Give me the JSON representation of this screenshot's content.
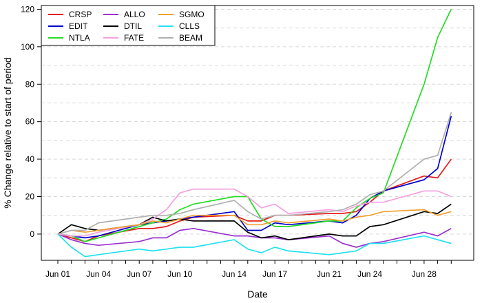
{
  "chart_data": {
    "type": "line",
    "xlabel": "Date",
    "ylabel": "% Change relative to start of period",
    "ylim": [
      -14,
      122
    ],
    "yticks": [
      0,
      20,
      40,
      60,
      80,
      100,
      120
    ],
    "x": [
      "Jun 01",
      "Jun 02",
      "Jun 03",
      "Jun 04",
      "Jun 05",
      "Jun 06",
      "Jun 07",
      "Jun 08",
      "Jun 09",
      "Jun 10",
      "Jun 11",
      "Jun 12",
      "Jun 13",
      "Jun 14",
      "Jun 15",
      "Jun 16",
      "Jun 17",
      "Jun 18",
      "Jun 19",
      "Jun 20",
      "Jun 21",
      "Jun 22",
      "Jun 23",
      "Jun 24",
      "Jun 25",
      "Jun 26",
      "Jun 27",
      "Jun 28",
      "Jun 29",
      "Jun 30"
    ],
    "xticks": [
      "Jun 01",
      "Jun 04",
      "Jun 07",
      "Jun 10",
      "Jun 14",
      "Jun 17",
      "Jun 21",
      "Jun 24",
      "Jun 28"
    ],
    "grid": "horizontal dashed",
    "legend_position": "top-left",
    "series": [
      {
        "name": "CRSP",
        "color": "#e41a1c",
        "points": [
          [
            "Jun 01",
            0
          ],
          [
            "Jun 02",
            -2
          ],
          [
            "Jun 03",
            -4
          ],
          [
            "Jun 04",
            -1
          ],
          [
            "Jun 07",
            3
          ],
          [
            "Jun 08",
            3
          ],
          [
            "Jun 09",
            4
          ],
          [
            "Jun 10",
            7
          ],
          [
            "Jun 11",
            9
          ],
          [
            "Jun 14",
            10
          ],
          [
            "Jun 15",
            7
          ],
          [
            "Jun 16",
            7
          ],
          [
            "Jun 17",
            10
          ],
          [
            "Jun 18",
            10
          ],
          [
            "Jun 21",
            11
          ],
          [
            "Jun 22",
            11
          ],
          [
            "Jun 23",
            12
          ],
          [
            "Jun 24",
            17
          ],
          [
            "Jun 25",
            23
          ],
          [
            "Jun 28",
            31
          ],
          [
            "Jun 29",
            30
          ],
          [
            "Jun 30",
            40
          ]
        ]
      },
      {
        "name": "EDIT",
        "color": "#0000cc",
        "points": [
          [
            "Jun 01",
            0
          ],
          [
            "Jun 02",
            -1
          ],
          [
            "Jun 03",
            -2
          ],
          [
            "Jun 04",
            -1
          ],
          [
            "Jun 07",
            5
          ],
          [
            "Jun 08",
            6
          ],
          [
            "Jun 09",
            7
          ],
          [
            "Jun 10",
            8
          ],
          [
            "Jun 11",
            9
          ],
          [
            "Jun 14",
            12
          ],
          [
            "Jun 15",
            2
          ],
          [
            "Jun 16",
            2
          ],
          [
            "Jun 17",
            6
          ],
          [
            "Jun 18",
            5
          ],
          [
            "Jun 21",
            7
          ],
          [
            "Jun 22",
            6
          ],
          [
            "Jun 23",
            10
          ],
          [
            "Jun 24",
            19
          ],
          [
            "Jun 25",
            23
          ],
          [
            "Jun 28",
            29
          ],
          [
            "Jun 29",
            35
          ],
          [
            "Jun 30",
            63
          ]
        ]
      },
      {
        "name": "NTLA",
        "color": "#22dd22",
        "points": [
          [
            "Jun 01",
            0
          ],
          [
            "Jun 02",
            -1
          ],
          [
            "Jun 03",
            -4
          ],
          [
            "Jun 04",
            -2
          ],
          [
            "Jun 07",
            4
          ],
          [
            "Jun 08",
            6
          ],
          [
            "Jun 09",
            8
          ],
          [
            "Jun 10",
            13
          ],
          [
            "Jun 11",
            16
          ],
          [
            "Jun 14",
            20
          ],
          [
            "Jun 15",
            20
          ],
          [
            "Jun 16",
            8
          ],
          [
            "Jun 17",
            4
          ],
          [
            "Jun 18",
            4
          ],
          [
            "Jun 21",
            7
          ],
          [
            "Jun 22",
            7
          ],
          [
            "Jun 23",
            14
          ],
          [
            "Jun 24",
            19
          ],
          [
            "Jun 25",
            22
          ],
          [
            "Jun 28",
            80
          ],
          [
            "Jun 29",
            105
          ],
          [
            "Jun 30",
            120
          ]
        ]
      },
      {
        "name": "ALLO",
        "color": "#9b30d0",
        "points": [
          [
            "Jun 01",
            0
          ],
          [
            "Jun 02",
            -3
          ],
          [
            "Jun 03",
            -5
          ],
          [
            "Jun 04",
            -6
          ],
          [
            "Jun 07",
            -4
          ],
          [
            "Jun 08",
            -2
          ],
          [
            "Jun 09",
            -2
          ],
          [
            "Jun 10",
            2
          ],
          [
            "Jun 11",
            3
          ],
          [
            "Jun 14",
            -1
          ],
          [
            "Jun 15",
            -1
          ],
          [
            "Jun 16",
            -2
          ],
          [
            "Jun 17",
            -2
          ],
          [
            "Jun 18",
            -3
          ],
          [
            "Jun 21",
            -1
          ],
          [
            "Jun 22",
            -5
          ],
          [
            "Jun 23",
            -7
          ],
          [
            "Jun 24",
            -5
          ],
          [
            "Jun 25",
            -4
          ],
          [
            "Jun 28",
            1
          ],
          [
            "Jun 29",
            -1
          ],
          [
            "Jun 30",
            3
          ]
        ]
      },
      {
        "name": "DTIL",
        "color": "#000000",
        "points": [
          [
            "Jun 01",
            0
          ],
          [
            "Jun 02",
            5
          ],
          [
            "Jun 03",
            3
          ],
          [
            "Jun 04",
            2
          ],
          [
            "Jun 07",
            5
          ],
          [
            "Jun 08",
            9
          ],
          [
            "Jun 09",
            7
          ],
          [
            "Jun 10",
            8
          ],
          [
            "Jun 11",
            7
          ],
          [
            "Jun 14",
            7
          ],
          [
            "Jun 15",
            1
          ],
          [
            "Jun 16",
            -2
          ],
          [
            "Jun 17",
            -1
          ],
          [
            "Jun 18",
            -3
          ],
          [
            "Jun 21",
            0
          ],
          [
            "Jun 22",
            -1
          ],
          [
            "Jun 23",
            -1
          ],
          [
            "Jun 24",
            4
          ],
          [
            "Jun 25",
            5
          ],
          [
            "Jun 28",
            12
          ],
          [
            "Jun 29",
            11
          ],
          [
            "Jun 30",
            16
          ]
        ]
      },
      {
        "name": "FATE",
        "color": "#f5a0e0",
        "points": [
          [
            "Jun 01",
            0
          ],
          [
            "Jun 02",
            -1
          ],
          [
            "Jun 03",
            -1
          ],
          [
            "Jun 04",
            1
          ],
          [
            "Jun 07",
            5
          ],
          [
            "Jun 08",
            8
          ],
          [
            "Jun 09",
            13
          ],
          [
            "Jun 10",
            22
          ],
          [
            "Jun 11",
            24
          ],
          [
            "Jun 14",
            24
          ],
          [
            "Jun 15",
            20
          ],
          [
            "Jun 16",
            14
          ],
          [
            "Jun 17",
            16
          ],
          [
            "Jun 18",
            11
          ],
          [
            "Jun 21",
            13
          ],
          [
            "Jun 22",
            12
          ],
          [
            "Jun 23",
            15
          ],
          [
            "Jun 24",
            17
          ],
          [
            "Jun 25",
            17
          ],
          [
            "Jun 28",
            23
          ],
          [
            "Jun 29",
            23
          ],
          [
            "Jun 30",
            20
          ]
        ]
      },
      {
        "name": "SGMO",
        "color": "#f0a030",
        "points": [
          [
            "Jun 01",
            0
          ],
          [
            "Jun 02",
            2
          ],
          [
            "Jun 03",
            1
          ],
          [
            "Jun 04",
            2
          ],
          [
            "Jun 07",
            5
          ],
          [
            "Jun 08",
            7
          ],
          [
            "Jun 09",
            6
          ],
          [
            "Jun 10",
            8
          ],
          [
            "Jun 11",
            10
          ],
          [
            "Jun 14",
            10
          ],
          [
            "Jun 15",
            5
          ],
          [
            "Jun 16",
            5
          ],
          [
            "Jun 17",
            7
          ],
          [
            "Jun 18",
            6
          ],
          [
            "Jun 21",
            8
          ],
          [
            "Jun 22",
            7
          ],
          [
            "Jun 23",
            9
          ],
          [
            "Jun 24",
            10
          ],
          [
            "Jun 25",
            12
          ],
          [
            "Jun 28",
            13
          ],
          [
            "Jun 29",
            10
          ],
          [
            "Jun 30",
            12
          ]
        ]
      },
      {
        "name": "CLLS",
        "color": "#22e0f0",
        "points": [
          [
            "Jun 01",
            0
          ],
          [
            "Jun 02",
            -7
          ],
          [
            "Jun 03",
            -12
          ],
          [
            "Jun 04",
            -11
          ],
          [
            "Jun 07",
            -8
          ],
          [
            "Jun 08",
            -9
          ],
          [
            "Jun 09",
            -8
          ],
          [
            "Jun 10",
            -7
          ],
          [
            "Jun 11",
            -7
          ],
          [
            "Jun 14",
            -3
          ],
          [
            "Jun 15",
            -8
          ],
          [
            "Jun 16",
            -10
          ],
          [
            "Jun 17",
            -7
          ],
          [
            "Jun 18",
            -9
          ],
          [
            "Jun 21",
            -11
          ],
          [
            "Jun 22",
            -10
          ],
          [
            "Jun 23",
            -9
          ],
          [
            "Jun 24",
            -5
          ],
          [
            "Jun 25",
            -5
          ],
          [
            "Jun 28",
            -1
          ],
          [
            "Jun 29",
            -3
          ],
          [
            "Jun 30",
            -5
          ]
        ]
      },
      {
        "name": "BEAM",
        "color": "#b0b0b0",
        "points": [
          [
            "Jun 01",
            0
          ],
          [
            "Jun 02",
            2
          ],
          [
            "Jun 03",
            2
          ],
          [
            "Jun 04",
            6
          ],
          [
            "Jun 07",
            9
          ],
          [
            "Jun 08",
            10
          ],
          [
            "Jun 09",
            10
          ],
          [
            "Jun 10",
            11
          ],
          [
            "Jun 11",
            13
          ],
          [
            "Jun 14",
            18
          ],
          [
            "Jun 15",
            12
          ],
          [
            "Jun 16",
            8
          ],
          [
            "Jun 17",
            10
          ],
          [
            "Jun 18",
            10
          ],
          [
            "Jun 21",
            12
          ],
          [
            "Jun 22",
            13
          ],
          [
            "Jun 23",
            16
          ],
          [
            "Jun 24",
            21
          ],
          [
            "Jun 25",
            23
          ],
          [
            "Jun 28",
            40
          ],
          [
            "Jun 29",
            42
          ],
          [
            "Jun 30",
            65
          ]
        ]
      }
    ]
  }
}
